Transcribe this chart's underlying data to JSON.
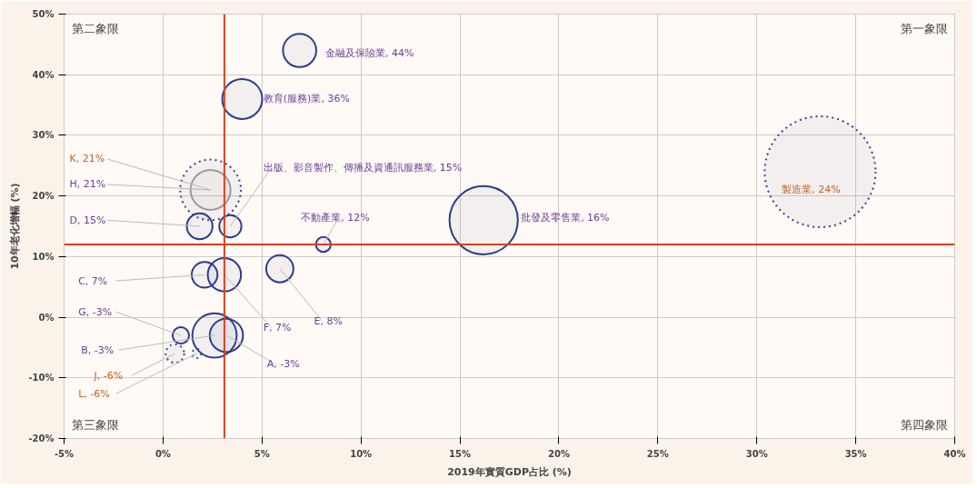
{
  "chart_data": {
    "type": "bubble",
    "xlabel": "2019年實質GDP占比 (%)",
    "ylabel": "10年老化增幅 (%)",
    "xlim": [
      -5,
      40
    ],
    "ylim": [
      -20,
      50
    ],
    "xticks": [
      {
        "value": -5,
        "label": "-5%"
      },
      {
        "value": 0,
        "label": "0%"
      },
      {
        "value": 5,
        "label": "5%"
      },
      {
        "value": 10,
        "label": "10%"
      },
      {
        "value": 15,
        "label": "15%"
      },
      {
        "value": 20,
        "label": "20%"
      },
      {
        "value": 25,
        "label": "25%"
      },
      {
        "value": 30,
        "label": "30%"
      },
      {
        "value": 35,
        "label": "35%"
      },
      {
        "value": 40,
        "label": "40%"
      }
    ],
    "yticks": [
      {
        "value": -20,
        "label": "-20%"
      },
      {
        "value": -10,
        "label": "-10%"
      },
      {
        "value": 0,
        "label": "0%"
      },
      {
        "value": 10,
        "label": "10%"
      },
      {
        "value": 20,
        "label": "20%"
      },
      {
        "value": 30,
        "label": "30%"
      },
      {
        "value": 40,
        "label": "40%"
      },
      {
        "value": 50,
        "label": "50%"
      }
    ],
    "grid": true,
    "ref_lines": [
      {
        "axis": "x",
        "value": 3.1,
        "color": "#e0401a"
      },
      {
        "axis": "y",
        "value": 12,
        "color": "#e0401a"
      }
    ],
    "annotations": [
      "第二象限",
      "第一象限",
      "第三象限",
      "第四象限"
    ],
    "series": [
      {
        "line_style": "solid",
        "color": "#2b3d8c",
        "colors": [
          "#2b3d8c",
          "#2b3d8c",
          "#2b3d8c",
          "#2b3d8c",
          "#2b3d8c",
          "#a89f98",
          "#2b3d8c",
          "#2b3d8c",
          "#2b3d8c",
          "#2b3d8c",
          "#2b3d8c",
          "#2b3d8c",
          "#2b3d8c"
        ],
        "x": [
          6.9,
          4.0,
          3.4,
          8.1,
          16.2,
          2.4,
          1.85,
          2.1,
          3.1,
          5.9,
          0.9,
          2.6,
          3.2
        ],
        "values": [
          44,
          36,
          15,
          12,
          16,
          21,
          15,
          7,
          7,
          8,
          -3,
          -3,
          -3
        ],
        "sizes": [
          0.09,
          0.13,
          0.04,
          0.018,
          0.38,
          0.13,
          0.054,
          0.054,
          0.09,
          0.06,
          0.022,
          0.16,
          0.09
        ],
        "value_labels": [
          "金融及保險業, 44%",
          "教育(服務)業, 36%",
          "出版、影音製作、傳播及資通訊服務業, 15%",
          "不動產業, 12%",
          "批發及零售業, 16%",
          "H, 21%",
          "D, 15%",
          "C, 7%",
          "F, 7%",
          "E, 8%",
          "G, -3%",
          "B, -3%",
          "A, -3%"
        ]
      },
      {
        "line_style": "dotted",
        "color": "#3a3f8f",
        "x": [
          33.2,
          2.4,
          0.6,
          1.7
        ],
        "values": [
          24,
          21,
          -6,
          -6
        ],
        "sizes": [
          1,
          0.3,
          0.028,
          0.007
        ],
        "value_labels": [
          "製造業, 24%",
          "K, 21%",
          "J, -6%",
          "L, -6%"
        ]
      }
    ]
  }
}
